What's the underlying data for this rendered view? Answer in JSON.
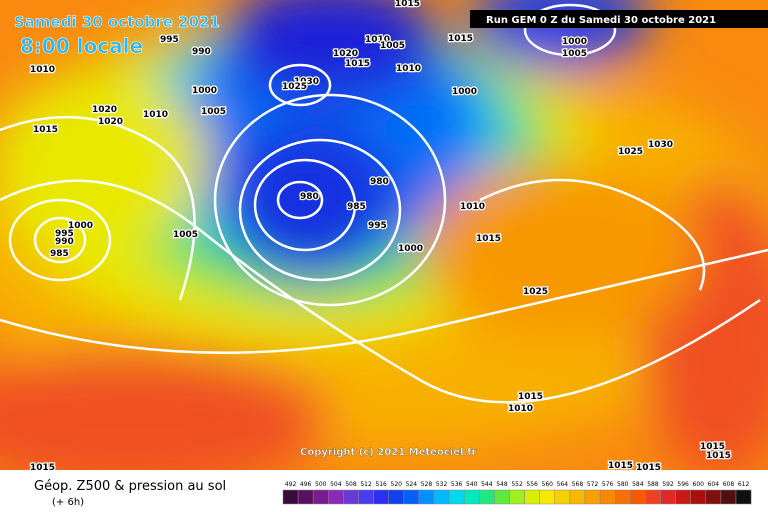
{
  "header": {
    "date": "Samedi 30 octobre 2021",
    "time": "8:00 locale",
    "run": "Run GEM 0 Z du Samedi 30 octobre 2021",
    "copyright": "Copyright (c) 2021 Meteociel.fr"
  },
  "footer": {
    "title": "Géop. Z500 & pression au sol",
    "lead": "(+ 6h)"
  },
  "isobar_labels": [
    "1015",
    "995",
    "990",
    "1020",
    "1015",
    "1010",
    "1005",
    "1015",
    "1010",
    "1030",
    "1025",
    "1000",
    "1000",
    "1005",
    "1010",
    "1020",
    "1020",
    "1010",
    "1015",
    "1000",
    "1005",
    "1025",
    "1030",
    "980",
    "980",
    "985",
    "995",
    "1010",
    "1015",
    "1000",
    "1005",
    "1000",
    "995",
    "990",
    "985",
    "1025",
    "1015",
    "1010",
    "1015",
    "1015",
    "1015",
    "1015",
    "1015"
  ],
  "legend": {
    "values": [
      "492",
      "496",
      "500",
      "504",
      "508",
      "512",
      "516",
      "520",
      "524",
      "528",
      "532",
      "536",
      "540",
      "544",
      "548",
      "552",
      "556",
      "560",
      "564",
      "568",
      "572",
      "576",
      "580",
      "584",
      "588",
      "592",
      "596",
      "600",
      "604",
      "608",
      "612"
    ],
    "colors": [
      "#3a0a3a",
      "#5a1060",
      "#7a1a90",
      "#8a2ab8",
      "#6a3ad8",
      "#4a3af0",
      "#2a30f8",
      "#1040f0",
      "#0060f8",
      "#0090ff",
      "#00b8ff",
      "#00d8f0",
      "#00e8c0",
      "#20e880",
      "#60e840",
      "#a0f020",
      "#d8f000",
      "#f8e800",
      "#f8d000",
      "#f8b800",
      "#f8a000",
      "#f88800",
      "#f87000",
      "#f85800",
      "#f04020",
      "#e02828",
      "#c81818",
      "#a81010",
      "#801010",
      "#501010",
      "#101010"
    ]
  }
}
